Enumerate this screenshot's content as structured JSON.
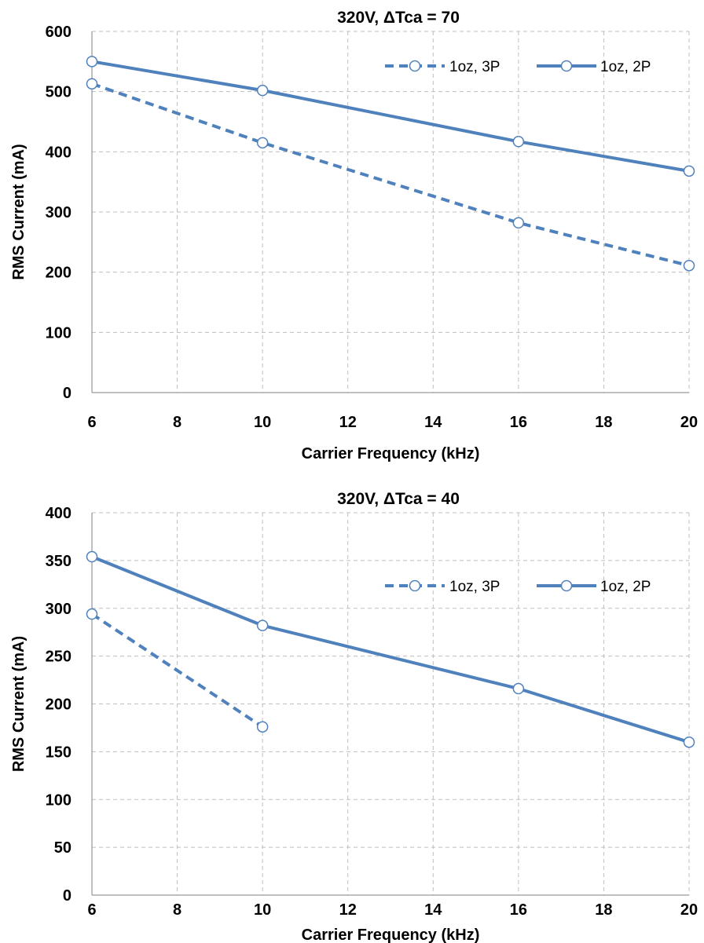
{
  "chart_data": [
    {
      "type": "line",
      "title": "320V, ΔTca = 70",
      "xlabel": "Carrier Frequency (kHz)",
      "ylabel": "RMS Current (mA)",
      "xlim": [
        6,
        20
      ],
      "ylim": [
        0,
        600
      ],
      "xticks": [
        6,
        8,
        10,
        12,
        14,
        16,
        18,
        20
      ],
      "yticks": [
        0,
        100,
        200,
        300,
        400,
        500,
        600
      ],
      "grid": true,
      "legend_position": "top-right",
      "series": [
        {
          "name": "1oz, 3P",
          "style": "dashed",
          "color": "#4f81bd",
          "x": [
            6,
            10,
            16,
            20
          ],
          "y": [
            513,
            415,
            282,
            211
          ]
        },
        {
          "name": "1oz, 2P",
          "style": "solid",
          "color": "#4f81bd",
          "x": [
            6,
            10,
            16,
            20
          ],
          "y": [
            550,
            502,
            417,
            368
          ]
        }
      ]
    },
    {
      "type": "line",
      "title": "320V, ΔTca = 40",
      "xlabel": "Carrier Frequency (kHz)",
      "ylabel": "RMS Current (mA)",
      "xlim": [
        6,
        20
      ],
      "ylim": [
        0,
        400
      ],
      "xticks": [
        6,
        8,
        10,
        12,
        14,
        16,
        18,
        20
      ],
      "yticks": [
        0,
        50,
        100,
        150,
        200,
        250,
        300,
        350,
        400
      ],
      "grid": true,
      "legend_position": "top-right",
      "series": [
        {
          "name": "1oz, 3P",
          "style": "dashed",
          "color": "#4f81bd",
          "x": [
            6,
            10
          ],
          "y": [
            294,
            176
          ]
        },
        {
          "name": "1oz, 2P",
          "style": "solid",
          "color": "#4f81bd",
          "x": [
            6,
            10,
            16,
            20
          ],
          "y": [
            354,
            282,
            216,
            160
          ]
        }
      ]
    }
  ]
}
